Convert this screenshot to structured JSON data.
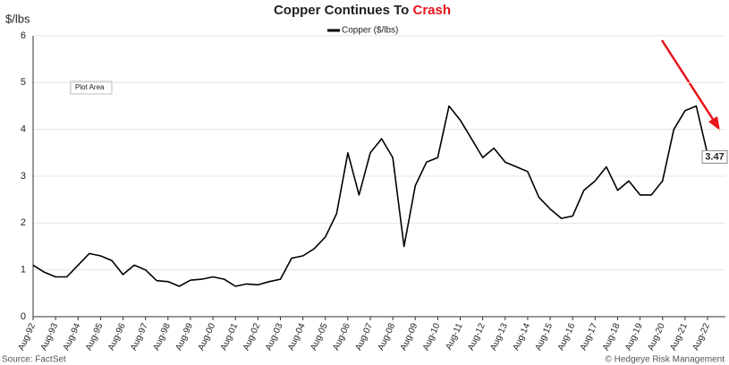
{
  "chart_data": {
    "type": "line",
    "title": "Copper Continues To",
    "title_highlight": "Crash",
    "ylabel": "$/lbs",
    "annotations": [
      "Plot Area"
    ],
    "source": "Source: FactSet",
    "credit": "© Hedgeye Risk Management",
    "x": [
      "Aug-92",
      "Feb-93",
      "Aug-93",
      "Feb-94",
      "Aug-94",
      "Feb-95",
      "Aug-95",
      "Feb-96",
      "Aug-96",
      "Feb-97",
      "Aug-97",
      "Feb-98",
      "Aug-98",
      "Feb-99",
      "Aug-99",
      "Feb-00",
      "Aug-00",
      "Feb-01",
      "Aug-01",
      "Feb-02",
      "Aug-02",
      "Feb-03",
      "Aug-03",
      "Feb-04",
      "Aug-04",
      "Feb-05",
      "Aug-05",
      "Feb-06",
      "Aug-06",
      "Feb-07",
      "Aug-07",
      "Feb-08",
      "Aug-08",
      "Feb-09",
      "Aug-09",
      "Feb-10",
      "Aug-10",
      "Feb-11",
      "Aug-11",
      "Feb-12",
      "Aug-12",
      "Feb-13",
      "Aug-13",
      "Feb-14",
      "Aug-14",
      "Feb-15",
      "Aug-15",
      "Feb-16",
      "Aug-16",
      "Feb-17",
      "Aug-17",
      "Feb-18",
      "Aug-18",
      "Feb-19",
      "Aug-19",
      "Feb-20",
      "Aug-20",
      "Feb-21",
      "Aug-21",
      "Feb-22",
      "Aug-22"
    ],
    "series": [
      {
        "name": "Copper ($/lbs)",
        "color": "#000000",
        "values": [
          1.1,
          0.95,
          0.85,
          0.85,
          1.1,
          1.35,
          1.3,
          1.2,
          0.9,
          1.1,
          1.0,
          0.77,
          0.75,
          0.65,
          0.78,
          0.8,
          0.85,
          0.8,
          0.65,
          0.7,
          0.68,
          0.75,
          0.8,
          1.25,
          1.3,
          1.45,
          1.7,
          2.2,
          3.5,
          2.6,
          3.5,
          3.8,
          3.4,
          1.5,
          2.8,
          3.3,
          3.4,
          4.5,
          4.2,
          3.8,
          3.4,
          3.6,
          3.3,
          3.2,
          3.1,
          2.55,
          2.3,
          2.1,
          2.15,
          2.7,
          2.9,
          3.2,
          2.7,
          2.9,
          2.6,
          2.6,
          2.9,
          4.0,
          4.4,
          4.5,
          3.47
        ]
      }
    ],
    "xticks": [
      "Aug-92",
      "Aug-93",
      "Aug-94",
      "Aug-95",
      "Aug-96",
      "Aug-97",
      "Aug-98",
      "Aug-99",
      "Aug-00",
      "Aug-01",
      "Aug-02",
      "Aug-03",
      "Aug-04",
      "Aug-05",
      "Aug-06",
      "Aug-07",
      "Aug-08",
      "Aug-09",
      "Aug-10",
      "Aug-11",
      "Aug-12",
      "Aug-13",
      "Aug-14",
      "Aug-15",
      "Aug-16",
      "Aug-17",
      "Aug-18",
      "Aug-19",
      "Aug-20",
      "Aug-21",
      "Aug-22"
    ],
    "ylim": [
      0,
      6
    ],
    "yticks": [
      0,
      1,
      2,
      3,
      4,
      5,
      6
    ],
    "grid": true,
    "highlight_color": "#e8141c"
  }
}
